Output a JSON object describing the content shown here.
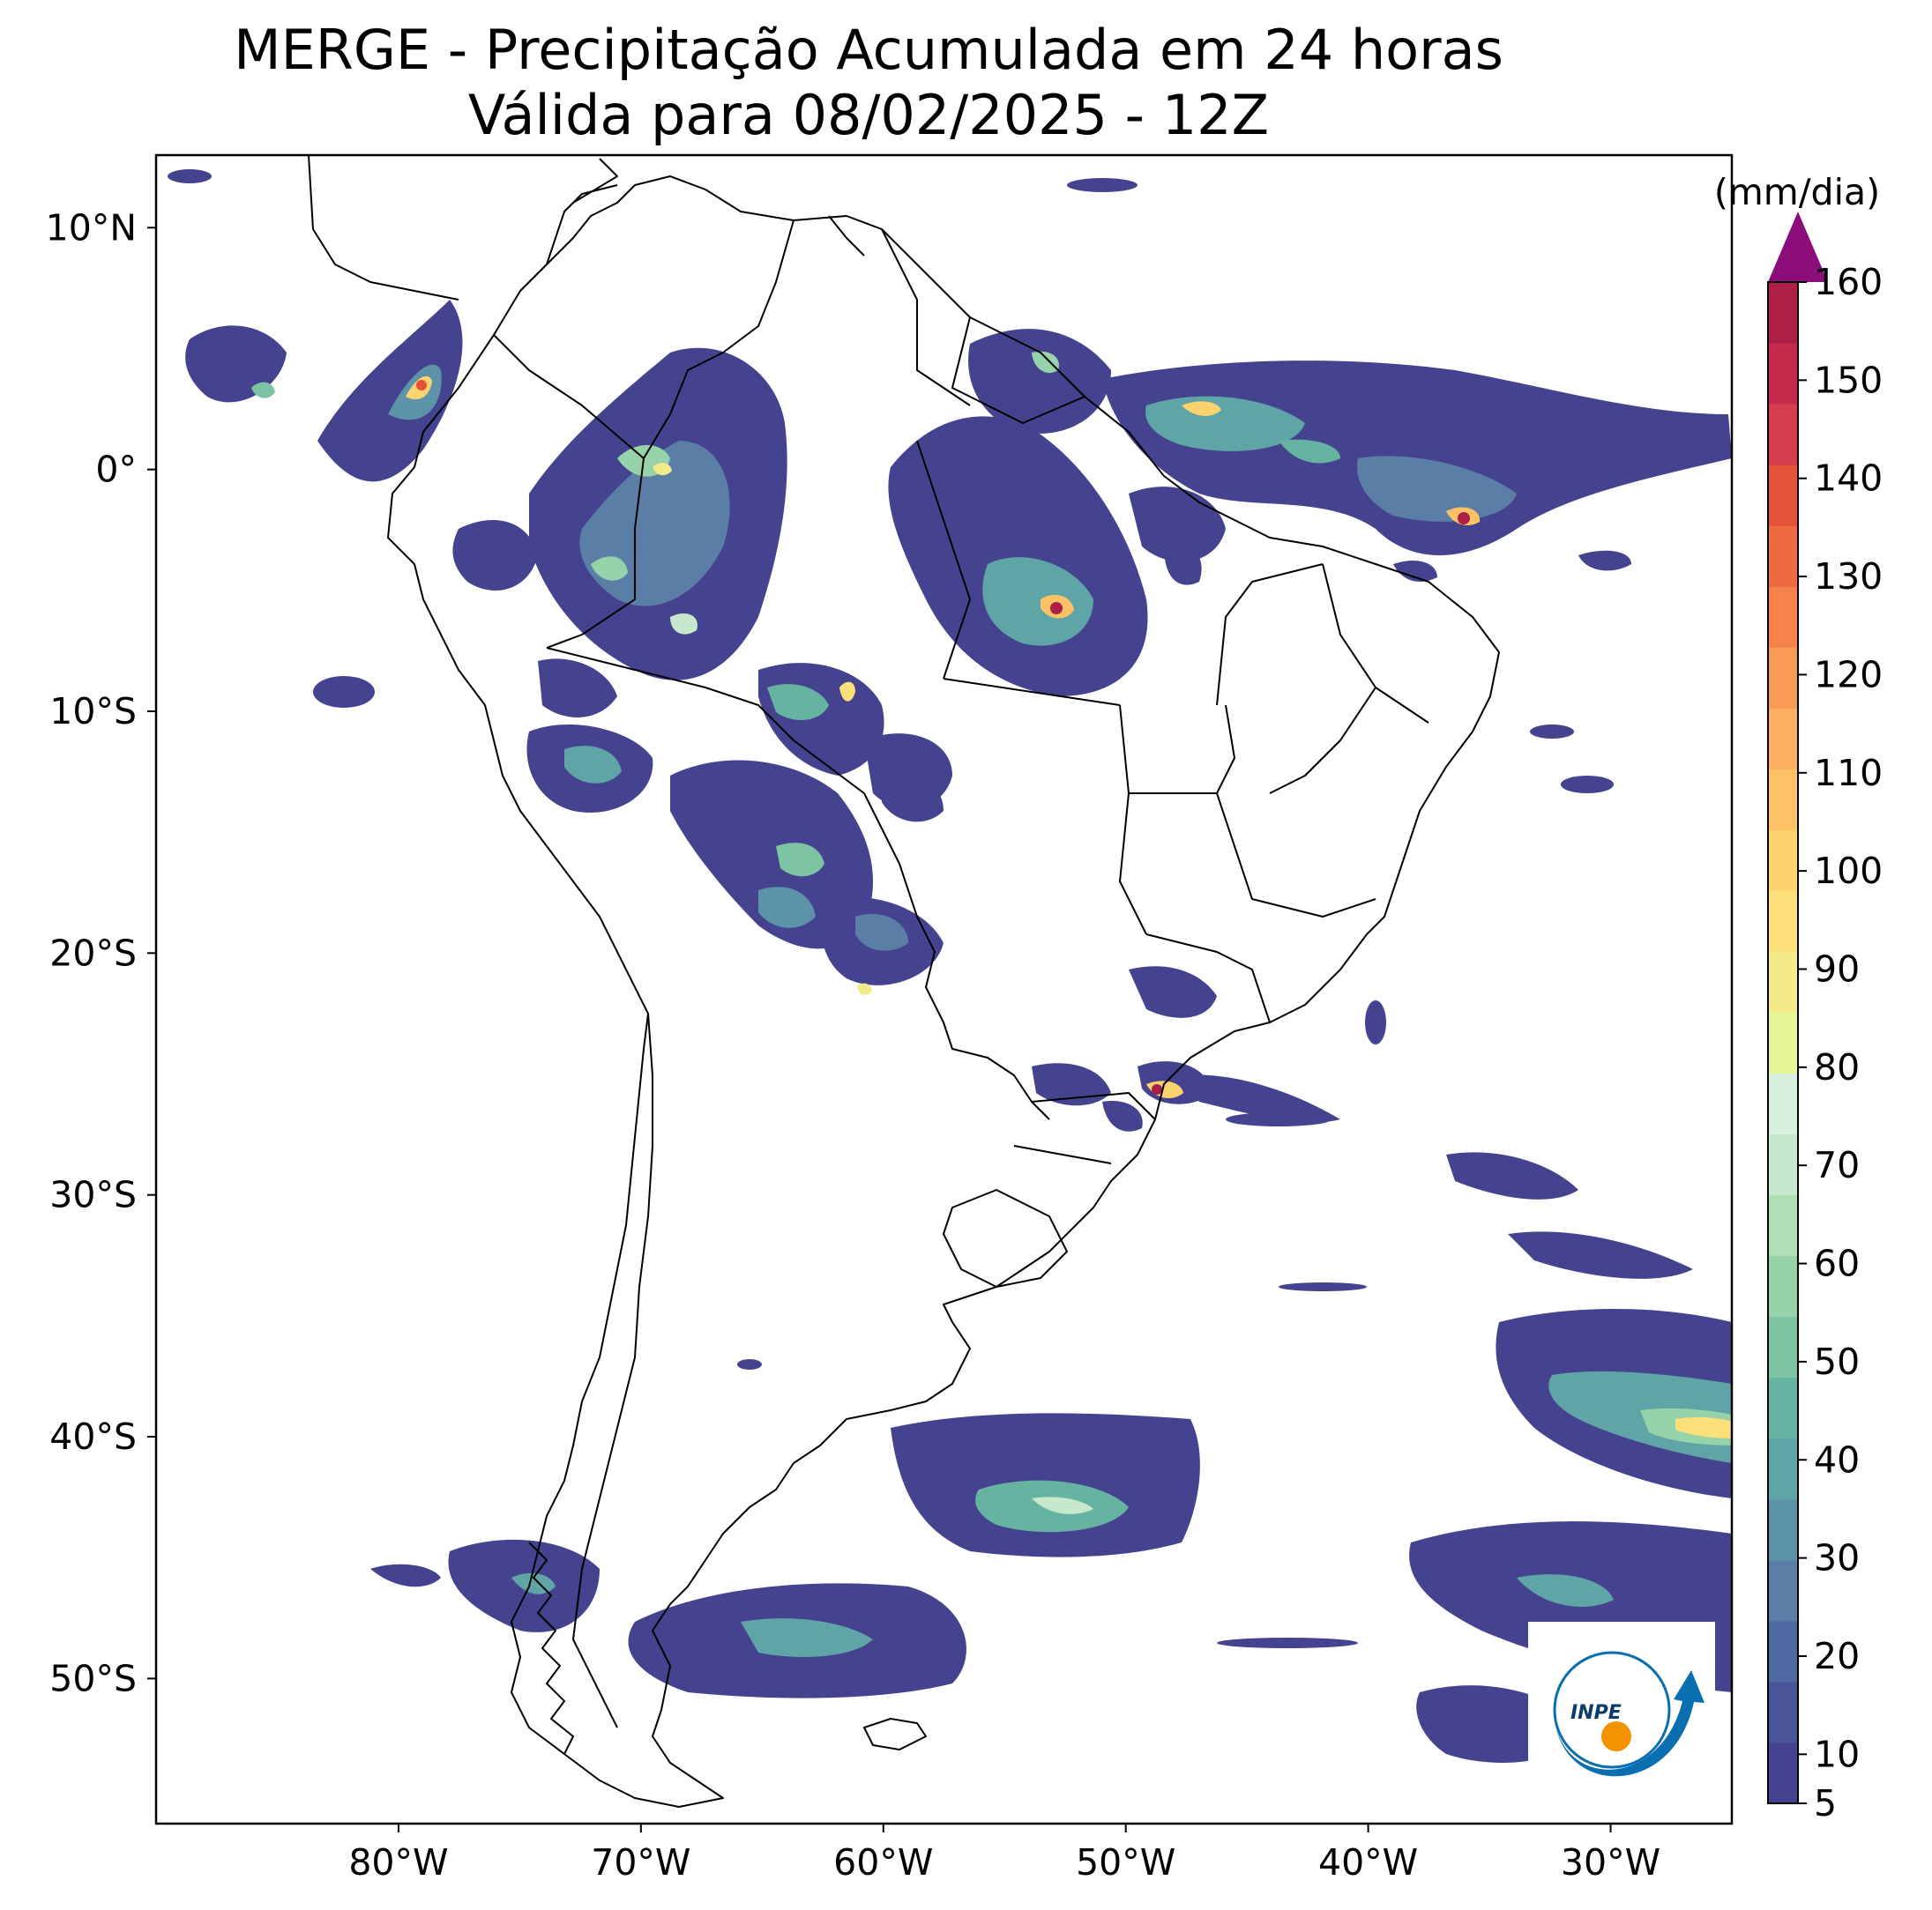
{
  "title": {
    "line1": "MERGE - Precipitação Acumulada em 24 horas",
    "line2": "Válida para 08/02/2025 - 12Z"
  },
  "axes": {
    "lat_labels": [
      "10°N",
      "0°",
      "10°S",
      "20°S",
      "30°S",
      "40°S",
      "50°S"
    ],
    "lat_values": [
      10,
      0,
      -10,
      -20,
      -30,
      -40,
      -50
    ],
    "lon_labels": [
      "80°W",
      "70°W",
      "60°W",
      "50°W",
      "40°W",
      "30°W"
    ],
    "lon_values": [
      -80,
      -70,
      -60,
      -50,
      -40,
      -30
    ],
    "lon_range": [
      -90,
      -25
    ],
    "lat_range": [
      -56,
      13
    ]
  },
  "colorbar": {
    "unit": "(mm/dia)",
    "tick_labels": [
      "5",
      "10",
      "20",
      "30",
      "40",
      "50",
      "60",
      "70",
      "80",
      "90",
      "100",
      "110",
      "120",
      "130",
      "140",
      "150",
      "160"
    ],
    "tick_values": [
      5,
      10,
      20,
      30,
      40,
      50,
      60,
      70,
      80,
      90,
      100,
      110,
      120,
      130,
      140,
      150,
      160
    ],
    "extend": "max",
    "colors": [
      "#45438f",
      "#4a5599",
      "#4f6aa0",
      "#5a7ea6",
      "#5d93a8",
      "#5fa4a6",
      "#66b3a1",
      "#7dc4a4",
      "#97d3aa",
      "#b0dfb6",
      "#c7e8cc",
      "#d9f0df",
      "#e6f598",
      "#f3ea8a",
      "#fbe07a",
      "#fdd36f",
      "#fdc265",
      "#fdae61",
      "#f99a55",
      "#f4824a",
      "#ee6a41",
      "#e45339",
      "#d53e4f",
      "#c42b4c",
      "#ae1f47"
    ],
    "over_color": "#8a0d7a"
  },
  "logo": {
    "text": "INPE",
    "name": "INPE logo"
  }
}
